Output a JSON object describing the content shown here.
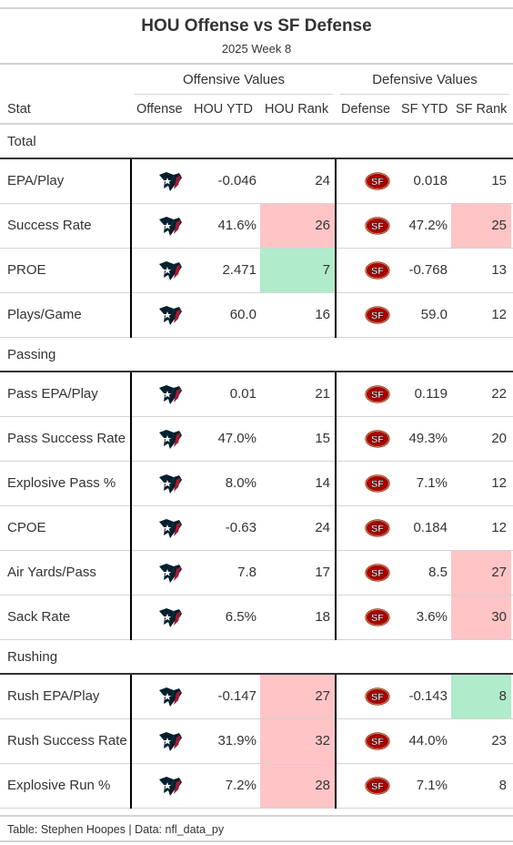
{
  "title": "HOU Offense vs SF Defense",
  "subtitle": "2025 Week 8",
  "spanners": {
    "offense": "Offensive Values",
    "defense": "Defensive Values"
  },
  "columns": {
    "stat": "Stat",
    "offense": "Offense",
    "hou_ytd": "HOU YTD",
    "hou_rank": "HOU Rank",
    "defense": "Defense",
    "sf_ytd": "SF YTD",
    "sf_rank": "SF Rank"
  },
  "icons": {
    "offense_logo": "texans-logo-icon",
    "defense_logo": "49ers-logo-icon"
  },
  "colors": {
    "bad_rank": "#ffc4c6",
    "good_rank": "#b0ebcb",
    "texans_navy": "#03202f",
    "texans_red": "#a71930",
    "niners_red": "#aa0000",
    "niners_gold": "#b3995d"
  },
  "groups": [
    {
      "name": "Total",
      "rows": [
        {
          "stat": "EPA/Play",
          "hou_ytd": "-0.046",
          "hou_rank": "24",
          "hou_rank_hl": "",
          "sf_ytd": "0.018",
          "sf_rank": "15",
          "sf_rank_hl": ""
        },
        {
          "stat": "Success Rate",
          "hou_ytd": "41.6%",
          "hou_rank": "26",
          "hou_rank_hl": "red",
          "sf_ytd": "47.2%",
          "sf_rank": "25",
          "sf_rank_hl": "red"
        },
        {
          "stat": "PROE",
          "hou_ytd": "2.471",
          "hou_rank": "7",
          "hou_rank_hl": "green",
          "sf_ytd": "-0.768",
          "sf_rank": "13",
          "sf_rank_hl": ""
        },
        {
          "stat": "Plays/Game",
          "hou_ytd": "60.0",
          "hou_rank": "16",
          "hou_rank_hl": "",
          "sf_ytd": "59.0",
          "sf_rank": "12",
          "sf_rank_hl": ""
        }
      ]
    },
    {
      "name": "Passing",
      "rows": [
        {
          "stat": "Pass EPA/Play",
          "hou_ytd": "0.01",
          "hou_rank": "21",
          "hou_rank_hl": "",
          "sf_ytd": "0.119",
          "sf_rank": "22",
          "sf_rank_hl": ""
        },
        {
          "stat": "Pass Success Rate",
          "hou_ytd": "47.0%",
          "hou_rank": "15",
          "hou_rank_hl": "",
          "sf_ytd": "49.3%",
          "sf_rank": "20",
          "sf_rank_hl": ""
        },
        {
          "stat": "Explosive Pass %",
          "hou_ytd": "8.0%",
          "hou_rank": "14",
          "hou_rank_hl": "",
          "sf_ytd": "7.1%",
          "sf_rank": "12",
          "sf_rank_hl": ""
        },
        {
          "stat": "CPOE",
          "hou_ytd": "-0.63",
          "hou_rank": "24",
          "hou_rank_hl": "",
          "sf_ytd": "0.184",
          "sf_rank": "12",
          "sf_rank_hl": ""
        },
        {
          "stat": "Air Yards/Pass",
          "hou_ytd": "7.8",
          "hou_rank": "17",
          "hou_rank_hl": "",
          "sf_ytd": "8.5",
          "sf_rank": "27",
          "sf_rank_hl": "red"
        },
        {
          "stat": "Sack Rate",
          "hou_ytd": "6.5%",
          "hou_rank": "18",
          "hou_rank_hl": "",
          "sf_ytd": "3.6%",
          "sf_rank": "30",
          "sf_rank_hl": "red"
        }
      ]
    },
    {
      "name": "Rushing",
      "rows": [
        {
          "stat": "Rush EPA/Play",
          "hou_ytd": "-0.147",
          "hou_rank": "27",
          "hou_rank_hl": "red",
          "sf_ytd": "-0.143",
          "sf_rank": "8",
          "sf_rank_hl": "green"
        },
        {
          "stat": "Rush Success Rate",
          "hou_ytd": "31.9%",
          "hou_rank": "32",
          "hou_rank_hl": "red",
          "sf_ytd": "44.0%",
          "sf_rank": "23",
          "sf_rank_hl": ""
        },
        {
          "stat": "Explosive Run %",
          "hou_ytd": "7.2%",
          "hou_rank": "28",
          "hou_rank_hl": "red",
          "sf_ytd": "7.1%",
          "sf_rank": "8",
          "sf_rank_hl": ""
        }
      ]
    }
  ],
  "footer": "Table: Stephen Hoopes | Data: nfl_data_py"
}
